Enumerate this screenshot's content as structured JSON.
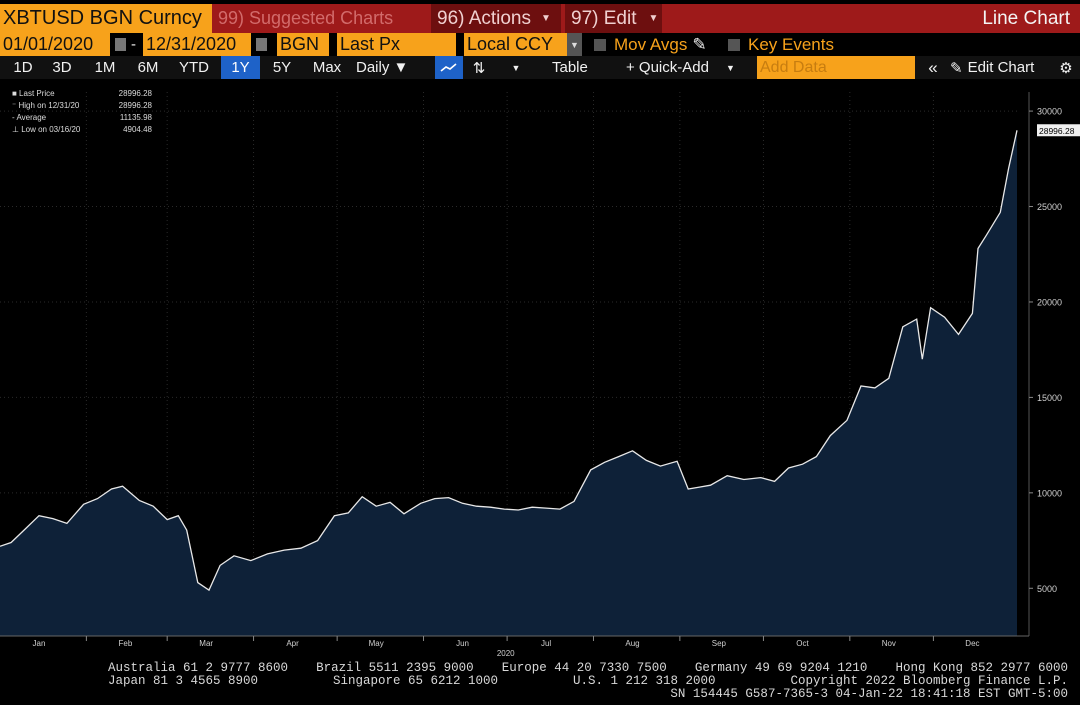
{
  "toolbar": {
    "ticker": "XBTUSD BGN Curncy",
    "related_label": "99) Suggested Charts",
    "actions_label": "96) Actions",
    "edit_label": "97) Edit",
    "chart_type_label": "Line Chart",
    "start_date": "01/01/2020",
    "end_date": "12/31/2020",
    "source": "BGN",
    "field": "Last Px",
    "currency": "Local CCY",
    "mov_avgs": "Mov Avgs",
    "key_events": "Key Events",
    "ranges": [
      "1D",
      "3D",
      "1M",
      "6M",
      "YTD",
      "1Y",
      "5Y",
      "Max"
    ],
    "frequency": "Daily ▼",
    "table_label": "Table",
    "quick_add_label": "+ Quick-Add",
    "add_data_placeholder": "Add Data",
    "edit_chart_label": "Edit Chart"
  },
  "legend": [
    {
      "label": "Last Price",
      "value": "28996.28"
    },
    {
      "label": "High on 12/31/20",
      "value": "28996.28"
    },
    {
      "label": "Average",
      "value": "11135.98"
    },
    {
      "label": "Low on 03/16/20",
      "value": "4904.48"
    }
  ],
  "footer": {
    "line1": [
      "Australia 61 2 9777 8600",
      "Brazil 5511 2395 9000",
      "Europe 44 20 7330 7500",
      "Germany 49 69 9204 1210",
      "Hong Kong 852 2977 6000"
    ],
    "line2": [
      "Japan 81 3 4565 8900",
      "Singapore 65 6212 1000",
      "U.S. 1 212 318 2000",
      "Copyright 2022 Bloomberg Finance L.P."
    ],
    "line3": "SN 154445 G587-7365-3 04-Jan-22 18:41:18 EST  GMT-5:00"
  },
  "colors": {
    "accent_orange": "#f7a21b",
    "header_red": "#9e1a1a",
    "area_fill": "#0e2138",
    "line": "#e8e8e8",
    "button_blue": "#1e62c8"
  },
  "chart_data": {
    "type": "area",
    "title": "",
    "xlabel": "2020",
    "ylabel": "",
    "ylim": [
      2500,
      31000
    ],
    "yticks": [
      5000,
      10000,
      15000,
      20000,
      25000,
      30000
    ],
    "months": [
      "Jan",
      "Feb",
      "Mar",
      "Apr",
      "May",
      "Jun",
      "Jul",
      "Aug",
      "Sep",
      "Oct",
      "Nov",
      "Dec"
    ],
    "last_value_label": "28996.28",
    "x": [
      "2020-01-01",
      "2020-01-05",
      "2020-01-10",
      "2020-01-15",
      "2020-01-20",
      "2020-01-25",
      "2020-01-31",
      "2020-02-05",
      "2020-02-10",
      "2020-02-14",
      "2020-02-20",
      "2020-02-25",
      "2020-03-01",
      "2020-03-05",
      "2020-03-08",
      "2020-03-12",
      "2020-03-16",
      "2020-03-20",
      "2020-03-25",
      "2020-03-31",
      "2020-04-06",
      "2020-04-12",
      "2020-04-18",
      "2020-04-24",
      "2020-04-30",
      "2020-05-05",
      "2020-05-10",
      "2020-05-15",
      "2020-05-20",
      "2020-05-25",
      "2020-05-31",
      "2020-06-05",
      "2020-06-10",
      "2020-06-15",
      "2020-06-20",
      "2020-06-25",
      "2020-06-30",
      "2020-07-05",
      "2020-07-10",
      "2020-07-15",
      "2020-07-20",
      "2020-07-25",
      "2020-07-31",
      "2020-08-05",
      "2020-08-10",
      "2020-08-15",
      "2020-08-20",
      "2020-08-25",
      "2020-08-31",
      "2020-09-04",
      "2020-09-08",
      "2020-09-12",
      "2020-09-18",
      "2020-09-24",
      "2020-09-30",
      "2020-10-05",
      "2020-10-10",
      "2020-10-15",
      "2020-10-20",
      "2020-10-25",
      "2020-10-31",
      "2020-11-05",
      "2020-11-10",
      "2020-11-15",
      "2020-11-20",
      "2020-11-25",
      "2020-11-27",
      "2020-11-30",
      "2020-12-05",
      "2020-12-10",
      "2020-12-15",
      "2020-12-17",
      "2020-12-20",
      "2020-12-25",
      "2020-12-28",
      "2020-12-31"
    ],
    "values": [
      7200,
      7400,
      8100,
      8800,
      8650,
      8400,
      9400,
      9700,
      10200,
      10350,
      9600,
      9300,
      8600,
      8800,
      8050,
      5300,
      4900,
      6200,
      6700,
      6450,
      6800,
      7000,
      7100,
      7500,
      8800,
      8950,
      9800,
      9300,
      9500,
      8900,
      9450,
      9700,
      9750,
      9450,
      9300,
      9250,
      9150,
      9100,
      9250,
      9200,
      9150,
      9550,
      11200,
      11600,
      11900,
      12200,
      11700,
      11400,
      11650,
      10200,
      10300,
      10400,
      10900,
      10700,
      10800,
      10600,
      11300,
      11500,
      11900,
      13000,
      13800,
      15600,
      15500,
      16000,
      18700,
      19100,
      17000,
      19700,
      19200,
      18300,
      19400,
      22800,
      23500,
      24700,
      27000,
      28996
    ]
  }
}
